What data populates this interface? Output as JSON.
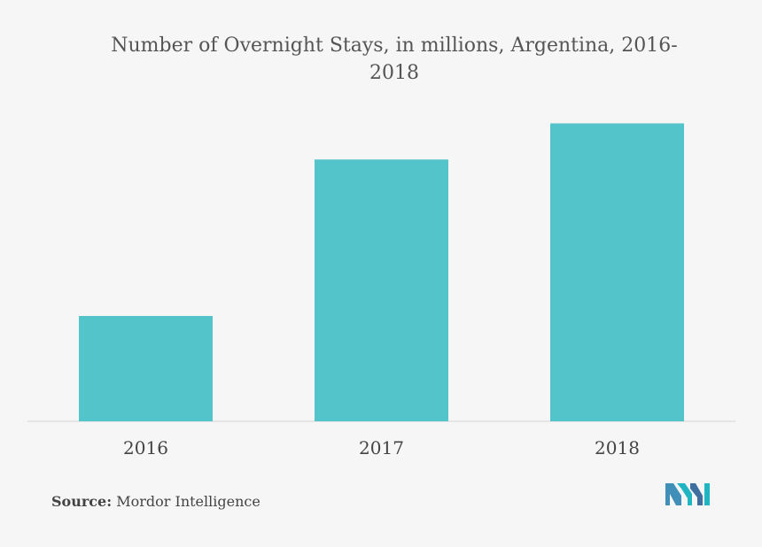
{
  "chart_data": {
    "type": "bar",
    "title": "Number of Overnight Stays, in millions, Argentina, 2016-2018",
    "categories": [
      "2016",
      "2017",
      "2018"
    ],
    "values": [
      35,
      87,
      99
    ],
    "ylim": [
      0,
      100
    ],
    "xlabel": "",
    "ylabel": "",
    "grid": false,
    "legend": "none",
    "colors": {
      "bar": "#53c4ca"
    }
  },
  "source": {
    "label": "Source:",
    "text": "Mordor Intelligence"
  },
  "logo": {
    "icon": "mordor-intelligence-logo-icon",
    "colors": [
      "#1fb5c2",
      "#3f6f9e"
    ]
  }
}
